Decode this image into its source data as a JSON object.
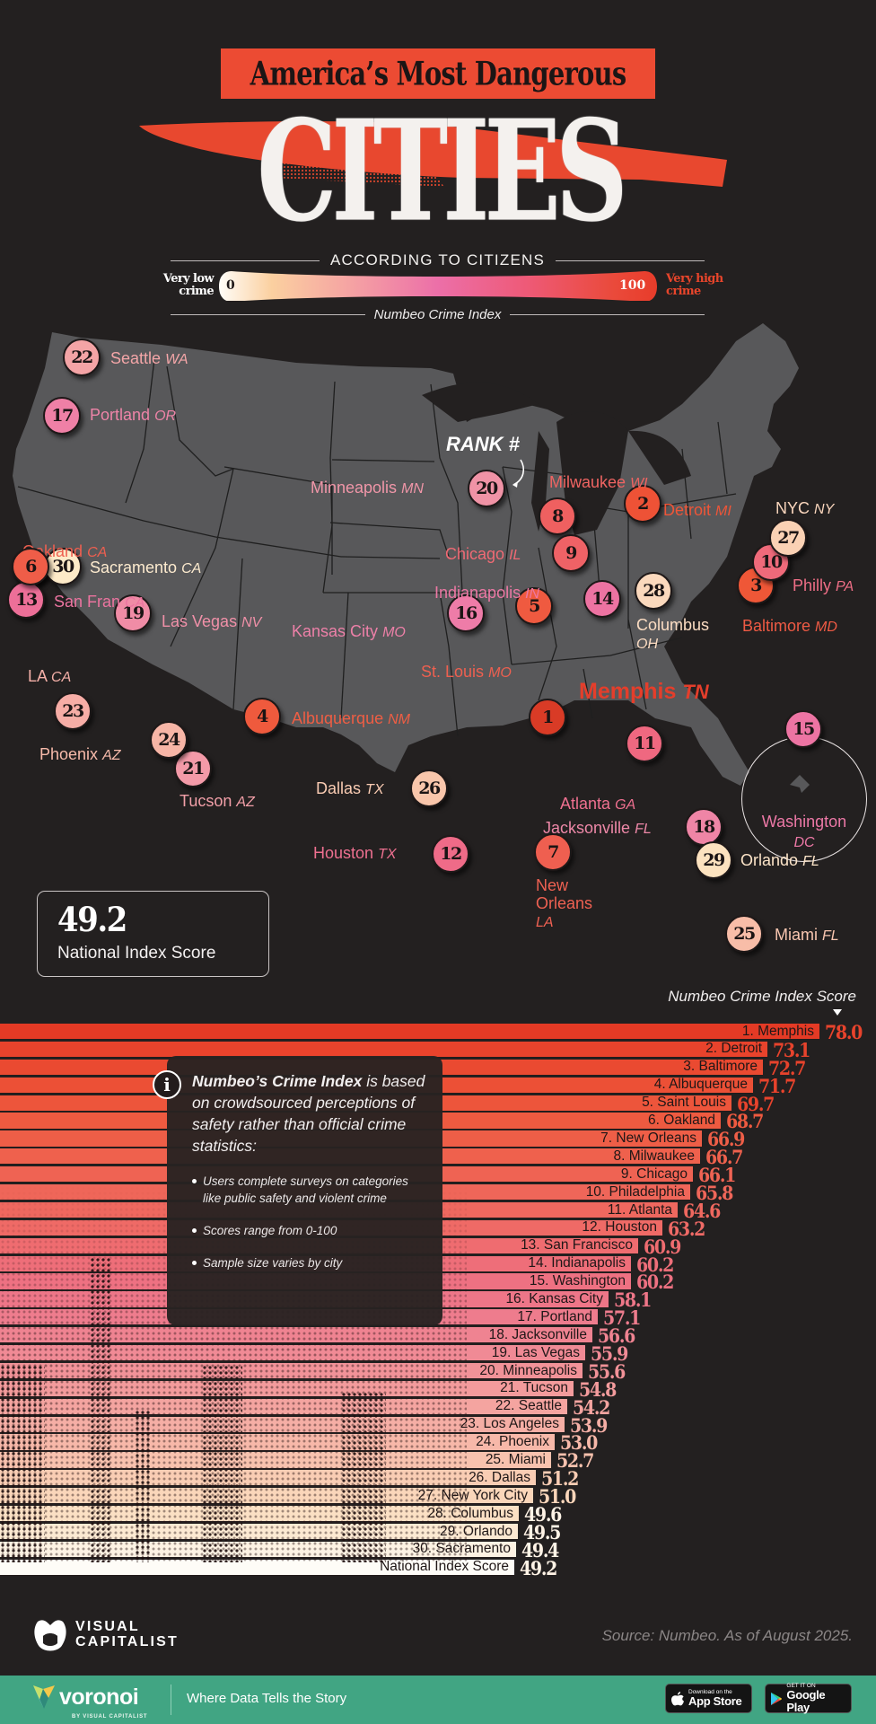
{
  "header": {
    "title_band": "America’s Most Dangerous",
    "title_big": "CITIES",
    "subtitle": "ACCORDING TO CITIZENS",
    "legend": {
      "low_label_line1": "Very low",
      "low_label_line2": "crime",
      "high_label_line1": "Very high",
      "high_label_line2": "crime",
      "min": "0",
      "max": "100",
      "index_name": "Numbeo Crime Index"
    }
  },
  "map": {
    "rank_hint": "RANK #",
    "featured": {
      "city": "Memphis",
      "state": "TN"
    },
    "national_box": {
      "value": "49.2",
      "label": "National Index Score"
    },
    "markers": [
      {
        "rank": "1",
        "city": "Memphis",
        "state": "TN",
        "color": "#d93b26"
      },
      {
        "rank": "2",
        "city": "Detroit",
        "state": "MI",
        "color": "#ee5236"
      },
      {
        "rank": "3",
        "city": "Baltimore",
        "state": "MD",
        "color": "#ef5737"
      },
      {
        "rank": "4",
        "city": "Albuquerque",
        "state": "NM",
        "color": "#ef5a3d"
      },
      {
        "rank": "5",
        "city": "St. Louis",
        "state": "MO",
        "color": "#ef5a40"
      },
      {
        "rank": "6",
        "city": "Oakland",
        "state": "CA",
        "color": "#ef5d48"
      },
      {
        "rank": "7",
        "city": "New Orleans",
        "state": "LA",
        "color": "#ef5f50"
      },
      {
        "rank": "8",
        "city": "Milwaukee",
        "state": "WI",
        "color": "#ef6060"
      },
      {
        "rank": "9",
        "city": "Chicago",
        "state": "IL",
        "color": "#ef6266"
      },
      {
        "rank": "10",
        "city": "Philly",
        "state": "PA",
        "color": "#ef6a7a"
      },
      {
        "rank": "11",
        "city": "Atlanta",
        "state": "GA",
        "color": "#ef6880"
      },
      {
        "rank": "12",
        "city": "Houston",
        "state": "TX",
        "color": "#ef6b88"
      },
      {
        "rank": "13",
        "city": "San Fran",
        "state": "CA",
        "color": "#ed6f98"
      },
      {
        "rank": "14",
        "city": "Indianapolis",
        "state": "IN",
        "color": "#ed73a2"
      },
      {
        "rank": "15",
        "city": "Washington",
        "state": "DC",
        "color": "#ed74a3"
      },
      {
        "rank": "16",
        "city": "Kansas City",
        "state": "MO",
        "color": "#ee7ca8"
      },
      {
        "rank": "17",
        "city": "Portland",
        "state": "OR",
        "color": "#ef80a6"
      },
      {
        "rank": "18",
        "city": "Jacksonville",
        "state": "FL",
        "color": "#ef85a6"
      },
      {
        "rank": "19",
        "city": "Las Vegas",
        "state": "NV",
        "color": "#f08ca6"
      },
      {
        "rank": "20",
        "city": "Minneapolis",
        "state": "MN",
        "color": "#f093a6"
      },
      {
        "rank": "21",
        "city": "Tucson",
        "state": "AZ",
        "color": "#f39aa8"
      },
      {
        "rank": "22",
        "city": "Seattle",
        "state": "WA",
        "color": "#f4a4a6"
      },
      {
        "rank": "23",
        "city": "LA",
        "state": "CA",
        "color": "#f6ad a6"
      },
      {
        "rank": "24",
        "city": "Phoenix",
        "state": "AZ",
        "color": "#f7b5a6"
      },
      {
        "rank": "25",
        "city": "Miami",
        "state": "FL",
        "color": "#f8bda8"
      },
      {
        "rank": "26",
        "city": "Dallas",
        "state": "TX",
        "color": "#f9c6ab"
      },
      {
        "rank": "27",
        "city": "NYC",
        "state": "NY",
        "color": "#fad1b4"
      },
      {
        "rank": "28",
        "city": "Columbus",
        "state": "OH",
        "color": "#fbd9bd"
      },
      {
        "rank": "29",
        "city": "Orlando",
        "state": "FL",
        "color": "#fce2bf"
      },
      {
        "rank": "30",
        "city": "Sacramento",
        "state": "CA",
        "color": "#fdeac8"
      }
    ]
  },
  "chart": {
    "title": "Numbeo Crime Index Score"
  },
  "info_box": {
    "lead_bold": "Numbeo’s Crime Index",
    "lead_rest": " is based on crowdsourced perceptions of safety rather than official crime statistics:",
    "bullets": [
      "Users complete surveys on categories like public safety and violent crime",
      "Scores range from 0-100",
      "Sample size varies by city"
    ]
  },
  "chart_data": {
    "type": "bar",
    "orientation": "horizontal",
    "title": "America’s Most Dangerous Cities According to Citizens",
    "xlabel": "Numbeo Crime Index Score",
    "ylabel": "",
    "xlim": [
      0,
      100
    ],
    "categories": [
      "1. Memphis",
      "2. Detroit",
      "3. Baltimore",
      "4. Albuquerque",
      "5. Saint Louis",
      "6. Oakland",
      "7. New Orleans",
      "8. Milwaukee",
      "9. Chicago",
      "10. Philadelphia",
      "11. Atlanta",
      "12. Houston",
      "13. San Francisco",
      "14. Indianapolis",
      "15. Washington",
      "16. Kansas City",
      "17. Portland",
      "18. Jacksonville",
      "19. Las Vegas",
      "20. Minneapolis",
      "21. Tucson",
      "22. Seattle",
      "23. Los Angeles",
      "24. Phoenix",
      "25. Miami",
      "26. Dallas",
      "27. New York City",
      "28. Columbus",
      "29. Orlando",
      "30. Sacramento",
      "National Index Score"
    ],
    "values": [
      78.0,
      73.1,
      72.7,
      71.7,
      69.7,
      68.7,
      66.9,
      66.7,
      66.1,
      65.8,
      64.6,
      63.2,
      60.9,
      60.2,
      60.2,
      58.1,
      57.1,
      56.6,
      55.9,
      55.6,
      54.8,
      54.2,
      53.9,
      53.0,
      52.7,
      51.2,
      51.0,
      49.6,
      49.5,
      49.4,
      49.2
    ],
    "value_labels": [
      "78.0",
      "73.1",
      "72.7",
      "71.7",
      "69.7",
      "68.7",
      "66.9",
      "66.7",
      "66.1",
      "65.8",
      "64.6",
      "63.2",
      "60.9",
      "60.2",
      "60.2",
      "58.1",
      "57.1",
      "56.6",
      "55.9",
      "55.6",
      "54.8",
      "54.2",
      "53.9",
      "53.0",
      "52.7",
      "51.2",
      "51.0",
      "49.6",
      "49.5",
      "49.4",
      "49.2"
    ],
    "colors": [
      "#e43a25",
      "#e8432c",
      "#ea4a31",
      "#ec5036",
      "#ed553b",
      "#ee5a40",
      "#ee5e47",
      "#ef614d",
      "#ef6353",
      "#ef6659",
      "#ef685f",
      "#ef6a66",
      "#ef6c70",
      "#ee6e79",
      "#ee7182",
      "#ee7688",
      "#ee7c8d",
      "#ef8391",
      "#f08a95",
      "#f19298",
      "#f39b9c",
      "#f4a4a0",
      "#f5aea5",
      "#f7b8a9",
      "#f8c2ae",
      "#f9cdb4",
      "#fad6ba",
      "#fbe0c4",
      "#fce9d2",
      "#fdf2e3",
      "#fefcf7"
    ],
    "national_average": 49.2,
    "legend_position": "none",
    "grid": false
  },
  "footer": {
    "brand": "VISUAL CAPITALIST",
    "brand_line1": "VISUAL",
    "brand_line2": "CAPITALIST",
    "source": "Source: Numbeo. As of August 2025.",
    "voronoi": "voronoi",
    "voronoi_byline": "BY VISUAL CAPITALIST",
    "tagline": "Where Data Tells the Story",
    "app_store_small": "Download on the",
    "app_store_big": "App Store",
    "google_small": "GET IT ON",
    "google_big": "Google Play"
  }
}
